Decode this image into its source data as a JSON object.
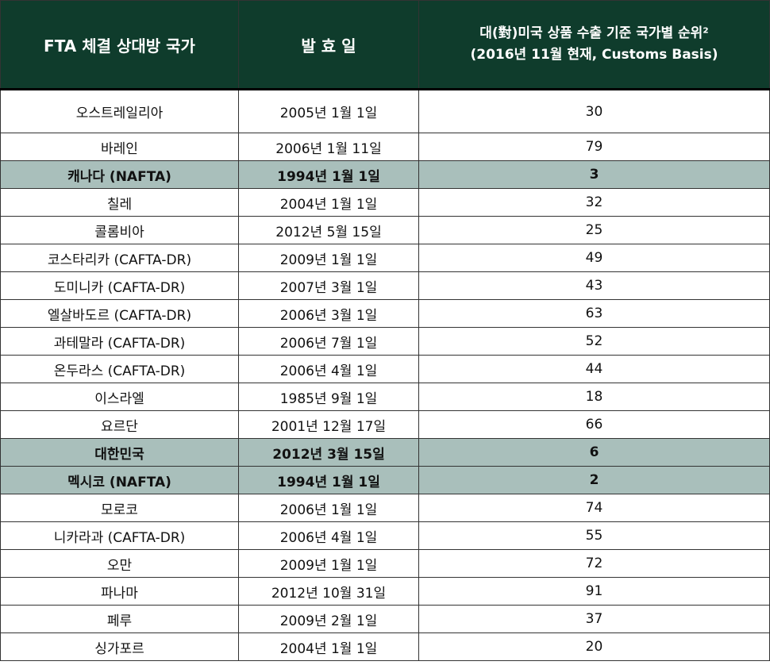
{
  "header": {
    "col1": "FTA 체결 상대방 국가",
    "col2": "발 효 일",
    "col3_line1": "대(對)미국 상품 수출 기준 국가별 순위²",
    "col3_line2": "(2016년 11월 현재, Customs Basis)"
  },
  "rows": [
    {
      "country": "오스트레일리아",
      "date": "2005년 1월 1일",
      "rank": "30"
    },
    {
      "country": "바레인",
      "date": "2006년 1월 11일",
      "rank": "79"
    },
    {
      "country": "캐나다 (NAFTA)",
      "date": "1994년 1월 1일",
      "rank": "3"
    },
    {
      "country": "칠레",
      "date": "2004년 1월 1일",
      "rank": "32"
    },
    {
      "country": "콜롬비아",
      "date": "2012년 5월 15일",
      "rank": "25"
    },
    {
      "country": "코스타리카 (CAFTA-DR)",
      "date": "2009년 1월 1일",
      "rank": "49"
    },
    {
      "country": "도미니카 (CAFTA-DR)",
      "date": "2007년 3월 1일",
      "rank": "43"
    },
    {
      "country": "엘살바도르 (CAFTA-DR)",
      "date": "2006년 3월 1일",
      "rank": "63"
    },
    {
      "country": "과테말라 (CAFTA-DR)",
      "date": "2006년 7월 1일",
      "rank": "52"
    },
    {
      "country": "온두라스 (CAFTA-DR)",
      "date": "2006년 4월 1일",
      "rank": "44"
    },
    {
      "country": "이스라엘",
      "date": "1985년 9월 1일",
      "rank": "18"
    },
    {
      "country": "요르단",
      "date": "2001년 12월 17일",
      "rank": "66"
    },
    {
      "country": "대한민국",
      "date": "2012년 3월 15일",
      "rank": "6"
    },
    {
      "country": "멕시코 (NAFTA)",
      "date": "1994년 1월 1일",
      "rank": "2"
    },
    {
      "country": "모로코",
      "date": "2006년 1월 1일",
      "rank": "74"
    },
    {
      "country": "니카라과 (CAFTA-DR)",
      "date": "2006년 4월 1일",
      "rank": "55"
    },
    {
      "country": "오만",
      "date": "2009년 1월 1일",
      "rank": "72"
    },
    {
      "country": "파나마",
      "date": "2012년 10월 31일",
      "rank": "91"
    },
    {
      "country": "페루",
      "date": "2009년 2월 1일",
      "rank": "37"
    },
    {
      "country": "싱가포르",
      "date": "2004년 1월 1일",
      "rank": "20"
    }
  ],
  "colors": {
    "header_bg": "#0f3c2c",
    "header_text": "#ffffff",
    "highlight_row_bg": "#a9bfbb"
  }
}
